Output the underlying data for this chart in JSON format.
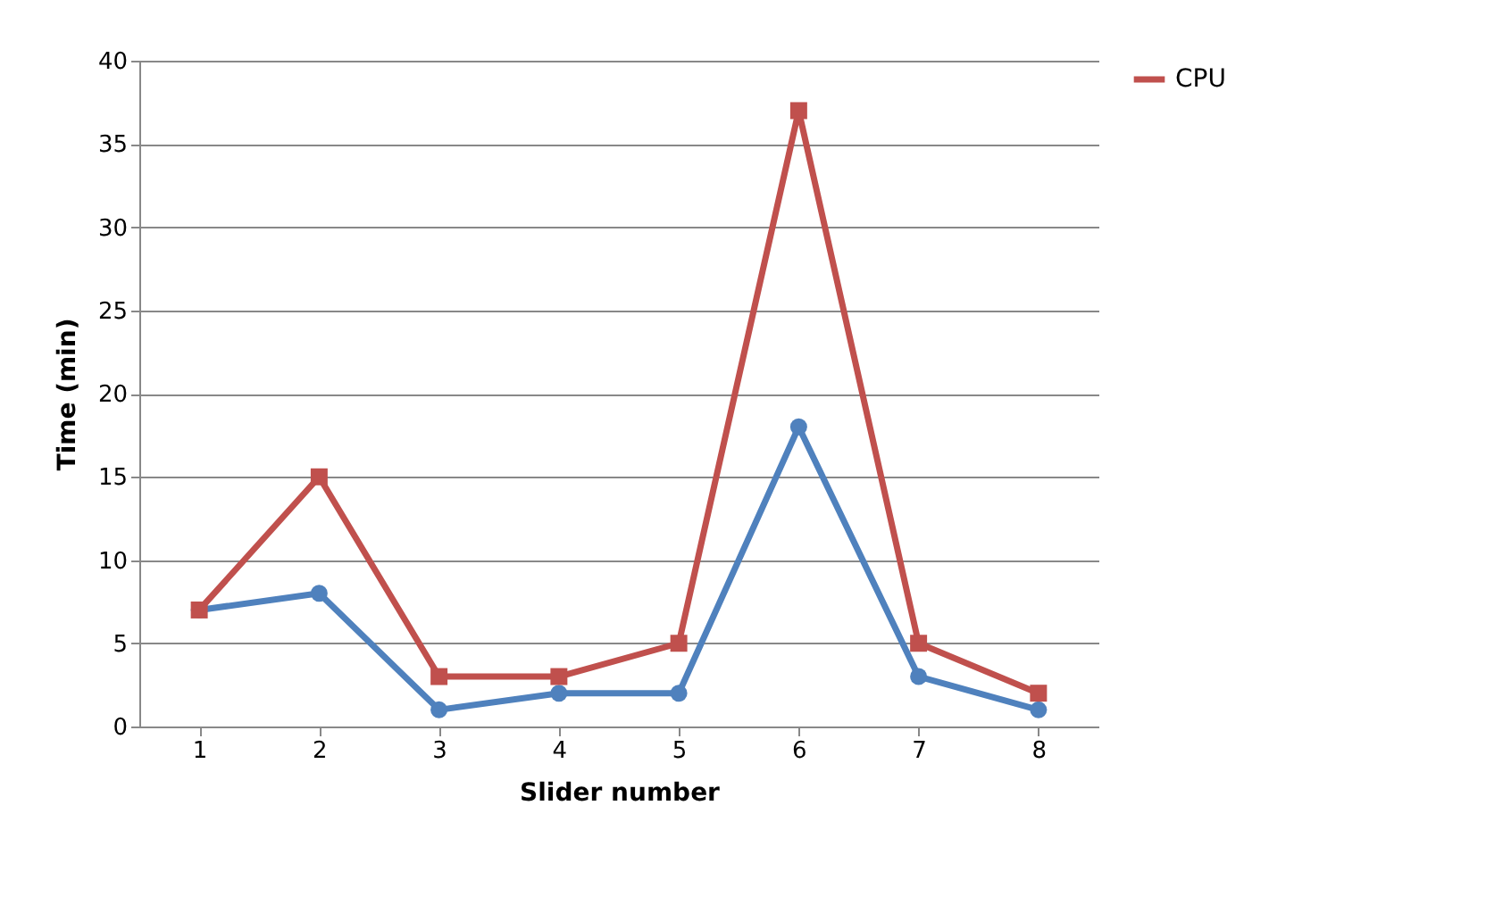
{
  "chart_data": {
    "type": "line",
    "xlabel": "Slider number",
    "ylabel": "Time (min)",
    "categories": [
      "1",
      "2",
      "3",
      "4",
      "5",
      "6",
      "7",
      "8"
    ],
    "series": [
      {
        "color": "#4f81bd",
        "marker": "circle",
        "values": [
          7,
          8,
          1,
          2,
          2,
          18,
          3,
          1
        ]
      },
      {
        "name": "CPU",
        "color": "#c0504d",
        "marker": "square",
        "values": [
          7,
          15,
          3,
          3,
          5,
          37,
          5,
          2
        ]
      }
    ],
    "ylim": [
      0,
      40
    ],
    "yticks": [
      0,
      5,
      10,
      15,
      20,
      25,
      30,
      35,
      40
    ],
    "grid": "y",
    "legend": "right",
    "line_style": "solid"
  }
}
